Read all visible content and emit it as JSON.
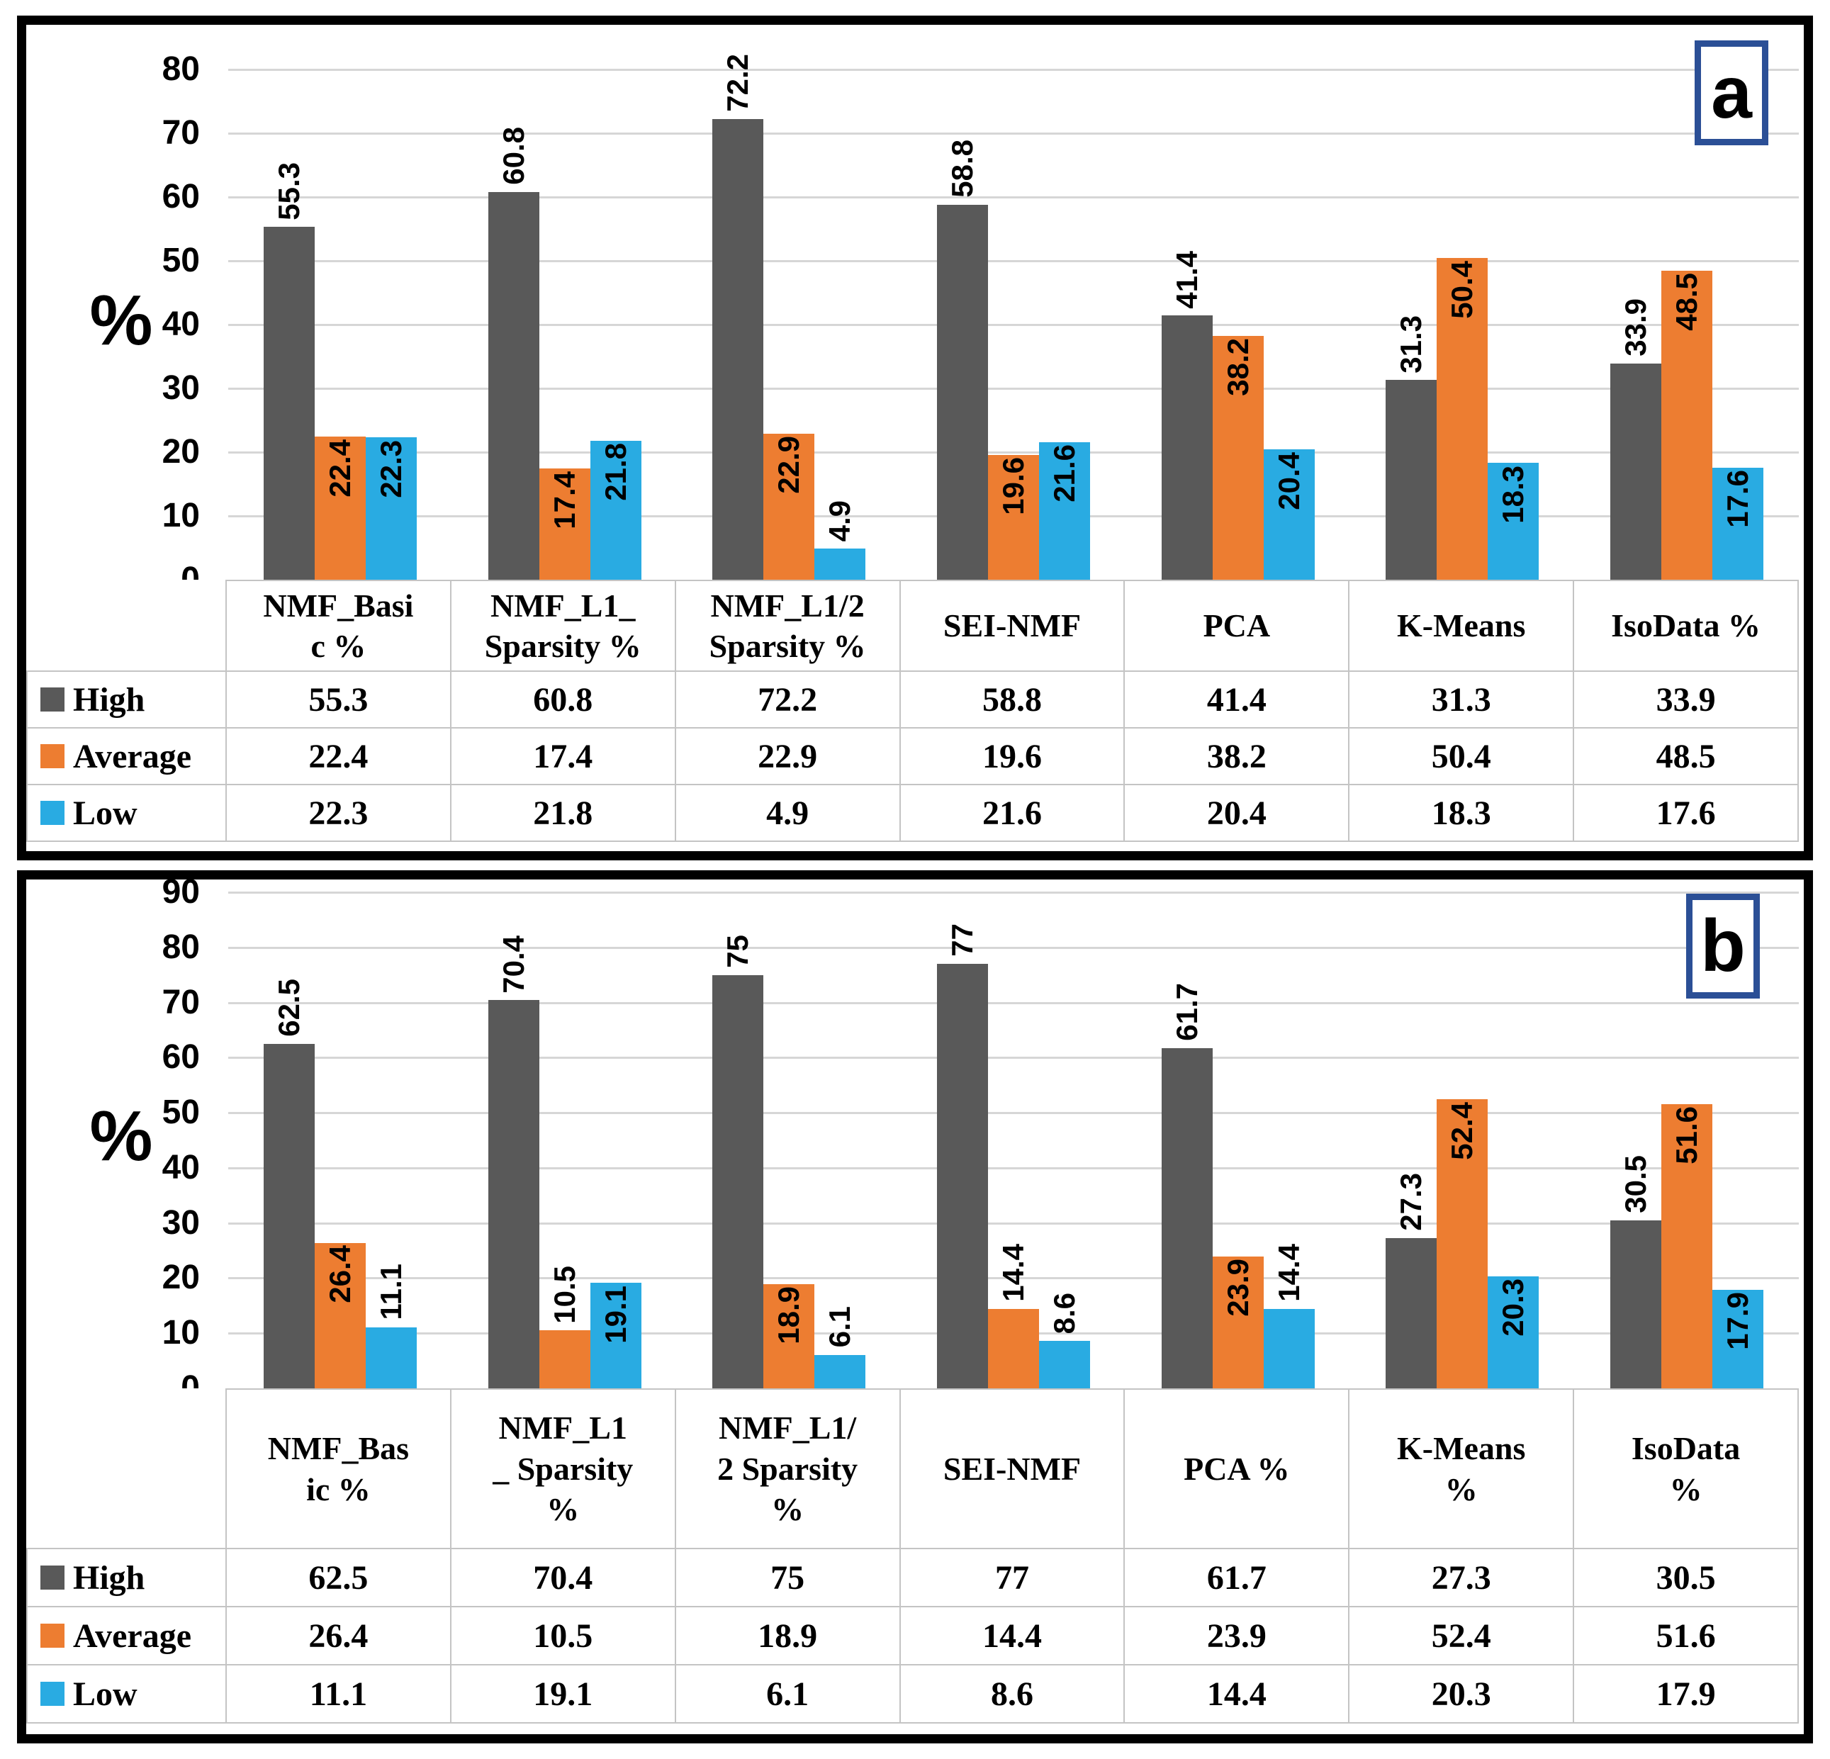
{
  "chart_data": [
    {
      "type": "bar",
      "panel_label": "a",
      "ylabel": "%",
      "ylim": [
        0,
        80
      ],
      "ytick_step": 10,
      "grid": "horizontal",
      "legend_position": "table-left",
      "bar_label_rotation": 90,
      "categories": [
        "NMF_Basic %",
        "NMF_L1_Sparsity %",
        "NMF_L1/2 Sparsity %",
        "SEI-NMF",
        "PCA",
        "K-Means",
        "IsoData %"
      ],
      "category_display": [
        "NMF_Basi\nc %",
        "NMF_L1_\nSparsity %",
        "NMF_L1/2\nSparsity %",
        "SEI-NMF",
        "PCA",
        "K-Means",
        "IsoData %"
      ],
      "series": [
        {
          "name": "High",
          "color": "#595959",
          "values": [
            55.3,
            60.8,
            72.2,
            58.8,
            41.4,
            31.3,
            33.9
          ]
        },
        {
          "name": "Average",
          "color": "#ED7D31",
          "values": [
            22.4,
            17.4,
            22.9,
            19.6,
            38.2,
            50.4,
            48.5
          ]
        },
        {
          "name": "Low",
          "color": "#29ABE2",
          "values": [
            22.3,
            21.8,
            4.9,
            21.6,
            20.4,
            18.3,
            17.6
          ]
        }
      ]
    },
    {
      "type": "bar",
      "panel_label": "b",
      "ylabel": "%",
      "ylim": [
        0,
        90
      ],
      "ytick_step": 10,
      "grid": "horizontal",
      "legend_position": "table-left",
      "bar_label_rotation": 90,
      "categories": [
        "NMF_Basic %",
        "NMF_L1_ Sparsity %",
        "NMF_L1/2 Sparsity %",
        "SEI-NMF",
        "PCA %",
        "K-Means %",
        "IsoData %"
      ],
      "category_display": [
        "NMF_Bas\nic %",
        "NMF_L1\n_ Sparsity\n%",
        "NMF_L1/\n2 Sparsity\n%",
        "SEI-NMF",
        "PCA %",
        "K-Means\n%",
        "IsoData\n%"
      ],
      "series": [
        {
          "name": "High",
          "color": "#595959",
          "values": [
            62.5,
            70.4,
            75,
            77,
            61.7,
            27.3,
            30.5
          ]
        },
        {
          "name": "Average",
          "color": "#ED7D31",
          "values": [
            26.4,
            10.5,
            18.9,
            14.4,
            23.9,
            52.4,
            51.6
          ]
        },
        {
          "name": "Low",
          "color": "#29ABE2",
          "values": [
            11.1,
            19.1,
            6.1,
            8.6,
            14.4,
            20.3,
            17.9
          ]
        }
      ]
    }
  ],
  "style_colors": {
    "high": "#595959",
    "average": "#ED7D31",
    "low": "#29ABE2",
    "gridline": "#D6D6D6",
    "table_border": "#C4C4C4",
    "panel_border": "#000000",
    "panel_tag_border": "#2B4F96"
  }
}
